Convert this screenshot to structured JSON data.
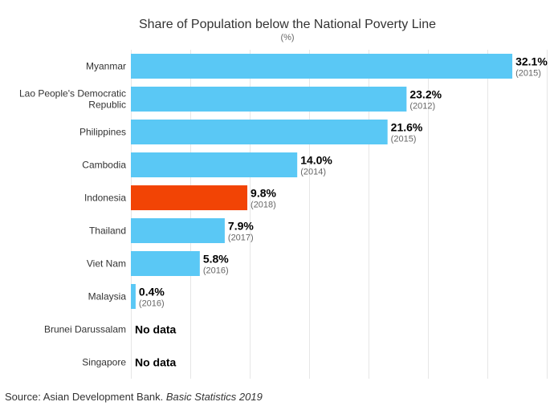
{
  "chart_data": {
    "type": "bar",
    "orientation": "horizontal",
    "title": "Share of Population below the National Poverty Line",
    "subtitle": "(%)",
    "xlim": [
      0,
      35
    ],
    "grid": true,
    "categories": [
      [
        "Myanmar"
      ],
      [
        "Lao People's Democratic",
        "Republic"
      ],
      [
        "Philippines"
      ],
      [
        "Cambodia"
      ],
      [
        "Indonesia"
      ],
      [
        "Thailand"
      ],
      [
        "Viet Nam"
      ],
      [
        "Malaysia"
      ],
      [
        "Brunei Darussalam"
      ],
      [
        "Singapore"
      ]
    ],
    "values": [
      32.1,
      23.2,
      21.6,
      14.0,
      9.8,
      7.9,
      5.8,
      0.4,
      null,
      null
    ],
    "value_labels": [
      "32.1%",
      "23.2%",
      "21.6%",
      "14.0%",
      "9.8%",
      "7.9%",
      "5.8%",
      "0.4%",
      "No data",
      "No data"
    ],
    "years": [
      "(2015)",
      "(2012)",
      "(2015)",
      "(2014)",
      "(2018)",
      "(2017)",
      "(2016)",
      "(2016)",
      "",
      ""
    ],
    "highlight_index": 4,
    "colors": {
      "bar": "#5ac8f5",
      "highlight": "#f24405",
      "grid": "#e6e6e6"
    }
  },
  "source": {
    "prefix": "Source: Asian Development Bank. ",
    "title": "Basic Statistics 2019"
  }
}
